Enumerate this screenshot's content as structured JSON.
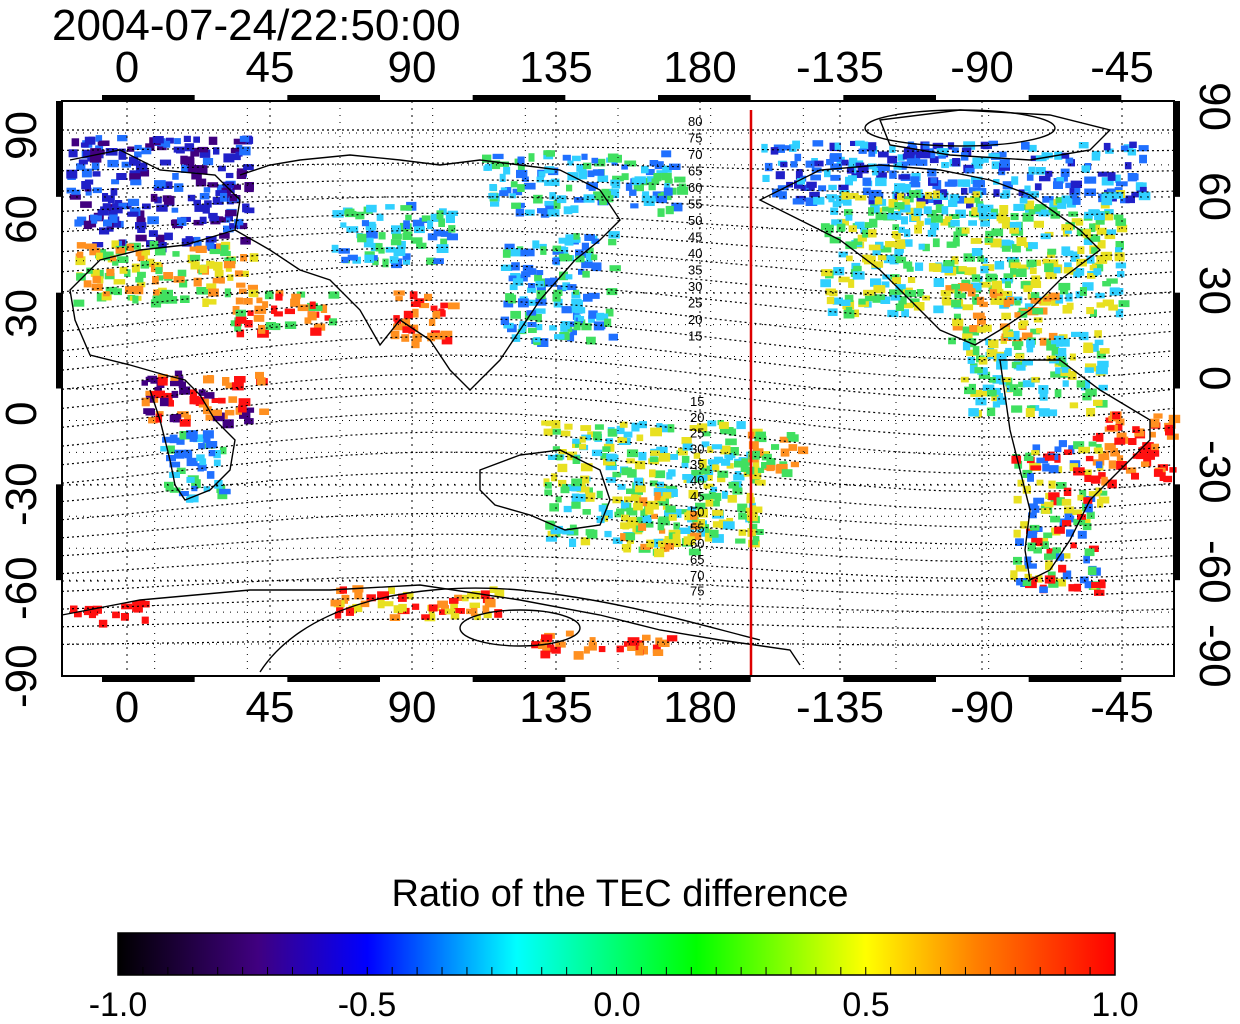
{
  "title": "2004-07-24/22:50:00",
  "map": {
    "lon_ticks": [
      "0",
      "45",
      "90",
      "135",
      "180",
      "-135",
      "-90",
      "-45"
    ],
    "lat_ticks": [
      "90",
      "60",
      "30",
      "0",
      "-30",
      "-60",
      "-90"
    ],
    "north_contour_labels": [
      "80",
      "75",
      "70",
      "65",
      "60",
      "55",
      "50",
      "45",
      "40",
      "35",
      "30",
      "25",
      "20",
      "15"
    ],
    "south_contour_labels": [
      "15",
      "20",
      "25",
      "30",
      "35",
      "40",
      "45",
      "50",
      "55",
      "60",
      "65",
      "70",
      "75"
    ],
    "marker_color": "#dd0000",
    "data_colors": {
      "dark_blue": "#2020c8",
      "blue": "#2070ff",
      "cyan": "#30d0ff",
      "green": "#40e060",
      "yellow": "#e8e020",
      "orange": "#ff9020",
      "red": "#ff1010",
      "purple": "#400080"
    }
  },
  "colorbar": {
    "title": "Ratio of the TEC difference",
    "ticks": [
      "-1.0",
      "-0.5",
      "0.0",
      "0.5",
      "1.0"
    ],
    "colors": [
      "#000000",
      "#400080",
      "#0000ff",
      "#00ffff",
      "#00ff00",
      "#ffff00",
      "#ff8000",
      "#ff0000"
    ]
  }
}
